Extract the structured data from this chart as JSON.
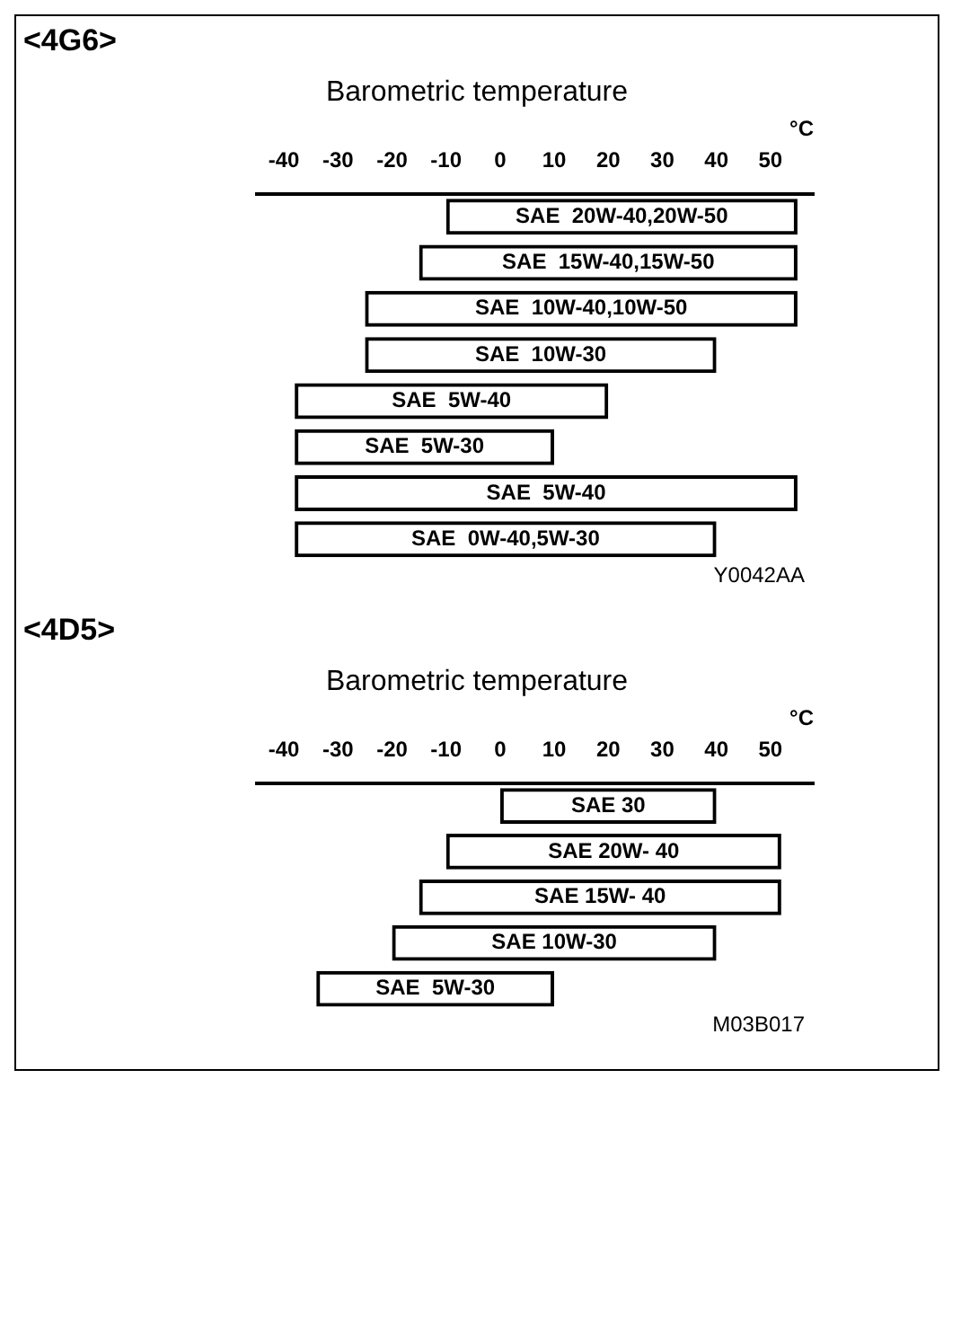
{
  "chart_data": [
    {
      "type": "bar",
      "title": "<4G6>",
      "subtitle": "Barometric temperature",
      "xlabel": "°C",
      "orientation": "horizontal",
      "categories": [
        "SAE  20W-40,20W-50",
        "SAE  15W-40,15W-50",
        "SAE  10W-40,10W-50",
        "SAE  10W-30",
        "SAE  5W-40",
        "SAE  5W-30",
        "SAE  5W-40",
        "SAE  0W-40,5W-30"
      ],
      "base": [
        -10,
        -15,
        -25,
        -25,
        -38,
        -38,
        -38,
        -38
      ],
      "values": [
        65,
        70,
        80,
        65,
        58,
        48,
        93,
        78
      ],
      "color": "#000000",
      "xlim": [
        -45,
        58
      ],
      "xticks": [
        -40,
        -30,
        -20,
        -10,
        0,
        10,
        20,
        30,
        40,
        50
      ],
      "grid": false,
      "legend": false,
      "annotations": [
        "Y0042AA"
      ]
    },
    {
      "type": "bar",
      "title": "<4D5>",
      "subtitle": "Barometric temperature",
      "xlabel": "°C",
      "orientation": "horizontal",
      "categories": [
        "SAE 30",
        "SAE 20W- 40",
        "SAE 15W- 40",
        "SAE 10W-30",
        "SAE  5W-30"
      ],
      "base": [
        0,
        -10,
        -15,
        -20,
        -34
      ],
      "values": [
        40,
        62,
        67,
        60,
        44
      ],
      "color": "#000000",
      "xlim": [
        -45,
        58
      ],
      "xticks": [
        -40,
        -30,
        -20,
        -10,
        0,
        10,
        20,
        30,
        40,
        50
      ],
      "grid": false,
      "legend": false,
      "annotations": [
        "M03B017"
      ]
    }
  ]
}
